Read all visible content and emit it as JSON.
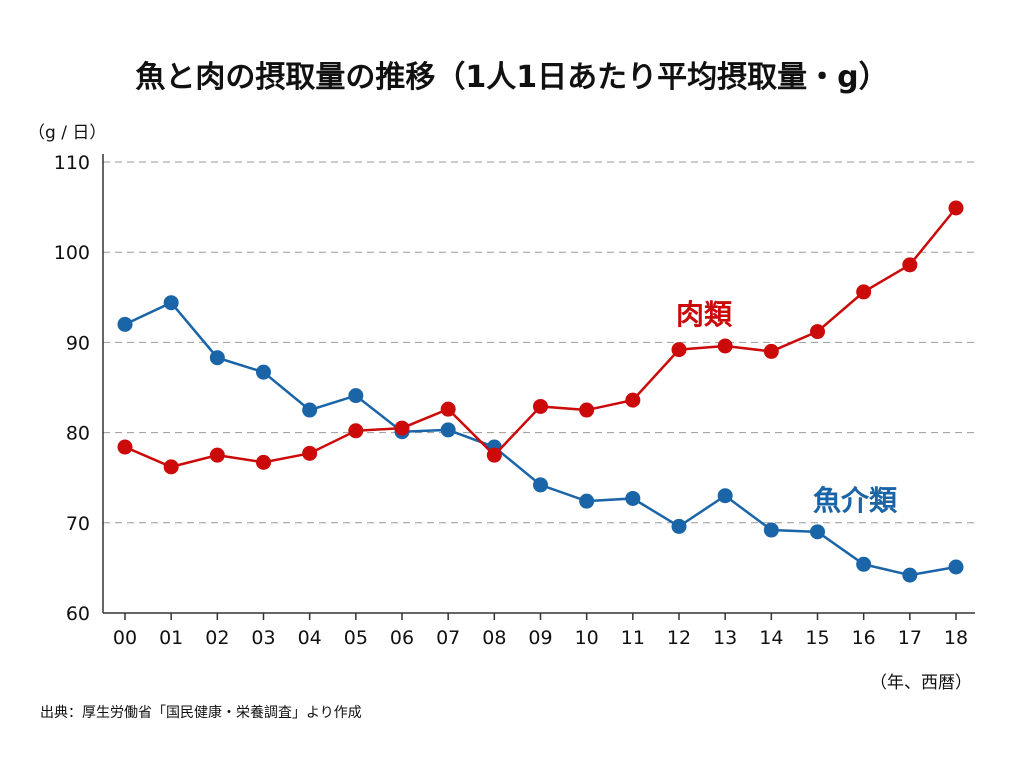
{
  "chart_data": {
    "type": "line",
    "title": "魚と肉の摂取量の推移（1人1日あたり平均摂取量・g）",
    "ylabel": "（g / 日）",
    "xlabel": "（年、西暦）",
    "source": "出典：厚生労働省「国民健康・栄養調査」より作成",
    "ylim": [
      60,
      110
    ],
    "yticks": [
      60,
      70,
      80,
      90,
      100,
      110
    ],
    "grid": true,
    "categories": [
      "00",
      "01",
      "02",
      "03",
      "04",
      "05",
      "06",
      "07",
      "08",
      "09",
      "10",
      "11",
      "12",
      "13",
      "14",
      "15",
      "16",
      "17",
      "18"
    ],
    "series": [
      {
        "name": "魚介類",
        "color": "#1a64a8",
        "values": [
          92.0,
          94.4,
          88.3,
          86.7,
          82.5,
          84.1,
          80.1,
          80.3,
          78.4,
          74.2,
          72.4,
          72.7,
          69.6,
          73.0,
          69.2,
          69.0,
          65.4,
          64.2,
          65.1
        ]
      },
      {
        "name": "肉類",
        "color": "#cc0a0a",
        "values": [
          78.4,
          76.2,
          77.5,
          76.7,
          77.7,
          80.2,
          80.5,
          82.6,
          77.5,
          82.9,
          82.5,
          83.6,
          89.2,
          89.6,
          89.0,
          91.2,
          95.6,
          98.6,
          104.9
        ]
      }
    ]
  }
}
